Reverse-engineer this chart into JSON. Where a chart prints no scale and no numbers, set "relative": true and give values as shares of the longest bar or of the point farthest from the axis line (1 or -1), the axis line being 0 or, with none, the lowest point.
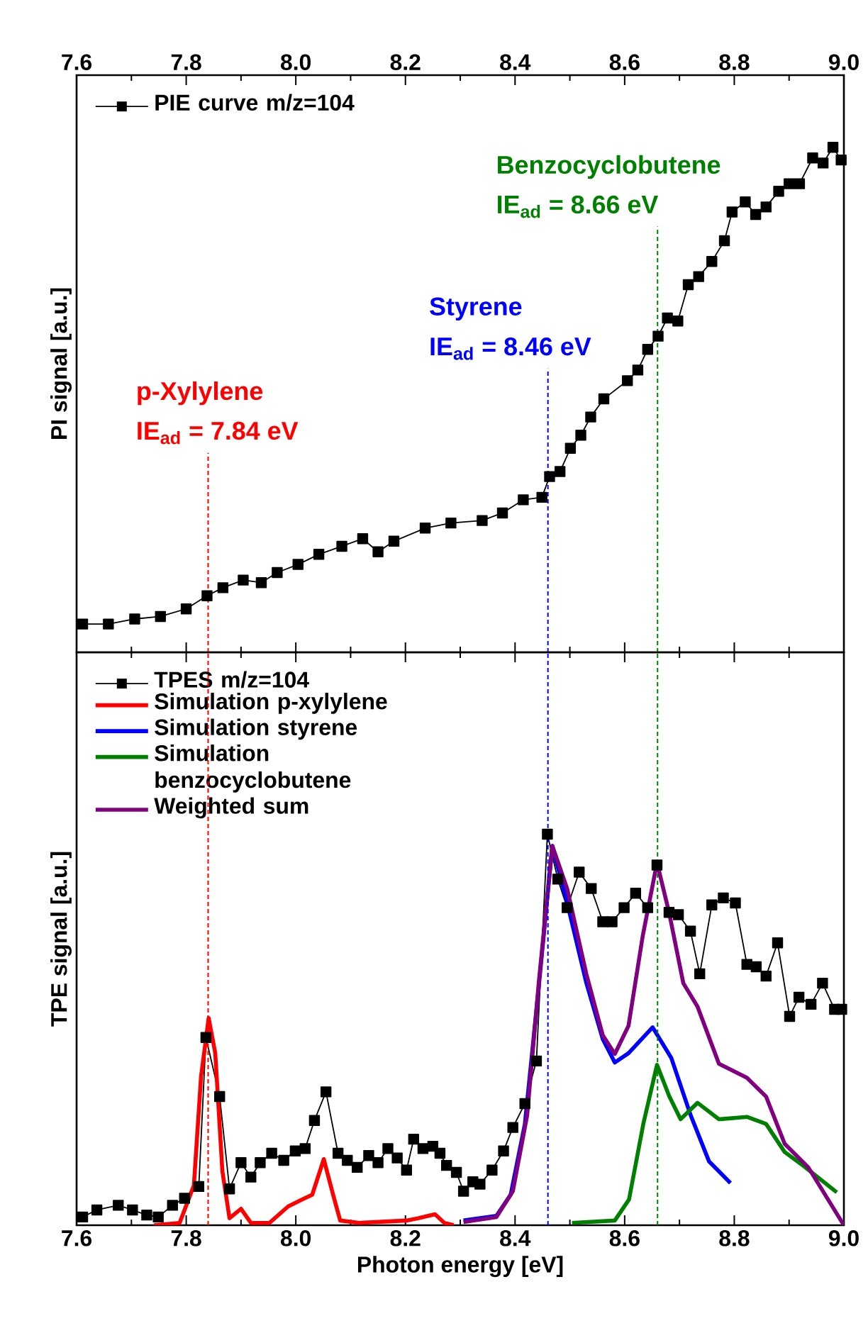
{
  "chart_data": [
    {
      "type": "line",
      "relative": true,
      "ylabel": "PI signal [a.u.]",
      "legend": "top left",
      "tick_labels": "x",
      "xlim": [
        7.6,
        9.0
      ],
      "xticks": [
        7.6,
        {
          "value": 7.7,
          "label": null
        },
        7.8,
        {
          "value": 7.9,
          "label": null
        },
        {
          "value": 8.0,
          "label": "8.0"
        },
        {
          "value": 8.1,
          "label": null
        },
        8.2,
        {
          "value": 8.3,
          "label": null
        },
        8.4,
        {
          "value": 8.5,
          "label": null
        },
        8.6,
        {
          "value": 8.7,
          "label": null
        },
        8.8,
        {
          "value": 8.9,
          "label": null
        },
        {
          "value": 9.0,
          "label": "9.0"
        }
      ],
      "series": [
        {
          "name": "PIE curve m/z=104",
          "color": "#000000",
          "marker": "square",
          "x": [
            7.611,
            7.658,
            7.706,
            7.753,
            7.8,
            7.838,
            7.867,
            7.904,
            7.937,
            7.966,
            8.004,
            8.042,
            8.084,
            8.122,
            8.15,
            8.179,
            8.236,
            8.283,
            8.34,
            8.377,
            8.415,
            8.449,
            8.463,
            8.482,
            8.501,
            8.52,
            8.538,
            8.562,
            8.605,
            8.624,
            8.642,
            8.661,
            8.678,
            8.697,
            8.716,
            8.735,
            8.759,
            8.782,
            8.796,
            8.82,
            8.839,
            8.858,
            8.881,
            8.9,
            8.919,
            8.943,
            8.962,
            8.98,
            8.995
          ],
          "values": [
            0.056,
            0.056,
            0.066,
            0.071,
            0.086,
            0.112,
            0.128,
            0.143,
            0.138,
            0.158,
            0.174,
            0.194,
            0.21,
            0.225,
            0.199,
            0.22,
            0.246,
            0.256,
            0.261,
            0.276,
            0.302,
            0.307,
            0.348,
            0.358,
            0.404,
            0.43,
            0.466,
            0.502,
            0.538,
            0.559,
            0.6,
            0.626,
            0.662,
            0.656,
            0.728,
            0.744,
            0.774,
            0.815,
            0.872,
            0.892,
            0.867,
            0.882,
            0.913,
            0.928,
            0.928,
            0.979,
            0.969,
            1,
            0.975
          ]
        }
      ],
      "ref_lines": [
        {
          "axis": "x",
          "value": 7.84,
          "label": "p-Xylylene",
          "color": "#ff0000",
          "line_style": "dashed"
        },
        {
          "axis": "x",
          "value": 8.46,
          "label": "Styrene",
          "color": "#0000ff",
          "line_style": "dashed"
        },
        {
          "axis": "x",
          "value": 8.66,
          "label": "Benzocyclobutene",
          "color": "#008000",
          "line_style": "dashed"
        }
      ],
      "annotations": [
        "IE$_{ad}$ = 7.84 eV",
        "IE$_{ad}$ = 8.46 eV",
        "IE$_{ad}$ = 8.66 eV"
      ]
    },
    {
      "type": "line",
      "relative": true,
      "xlabel": "Photon energy [eV]",
      "ylabel": "TPE signal [a.u.]",
      "legend": "top left",
      "xlim": [
        7.6,
        9.0
      ],
      "xticks": [
        7.6,
        {
          "value": 7.7,
          "label": null
        },
        7.8,
        {
          "value": 7.9,
          "label": null
        },
        {
          "value": 8.0,
          "label": "8.0"
        },
        {
          "value": 8.1,
          "label": null
        },
        8.2,
        {
          "value": 8.3,
          "label": null
        },
        8.4,
        {
          "value": 8.5,
          "label": null
        },
        8.6,
        {
          "value": 8.7,
          "label": null
        },
        8.8,
        {
          "value": 8.9,
          "label": null
        },
        {
          "value": 9.0,
          "label": "9.0"
        }
      ],
      "series": [
        {
          "name": "TPES m/z=104",
          "color": "#000000",
          "marker": "square",
          "x": [
            7.611,
            7.637,
            7.676,
            7.702,
            7.728,
            7.749,
            7.775,
            7.797,
            7.823,
            7.836,
            7.861,
            7.879,
            7.9,
            7.918,
            7.935,
            7.956,
            7.978,
            7.999,
            8.017,
            8.034,
            8.055,
            8.077,
            8.094,
            8.112,
            8.133,
            8.15,
            8.168,
            8.185,
            8.202,
            8.215,
            8.232,
            8.25,
            8.263,
            8.275,
            8.293,
            8.306,
            8.323,
            8.336,
            8.358,
            8.379,
            8.396,
            8.418,
            8.439,
            8.459,
            8.478,
            8.495,
            8.517,
            8.539,
            8.56,
            8.577,
            8.599,
            8.62,
            8.642,
            8.659,
            8.681,
            8.698,
            8.72,
            8.737,
            8.759,
            8.78,
            8.802,
            8.823,
            8.84,
            8.858,
            8.879,
            8.901,
            8.918,
            8.94,
            8.961,
            8.983,
            8.996
          ],
          "values": [
            0.021,
            0.039,
            0.051,
            0.039,
            0.026,
            0.021,
            0.051,
            0.069,
            0.099,
            0.48,
            0.329,
            0.093,
            0.16,
            0.123,
            0.16,
            0.184,
            0.166,
            0.19,
            0.196,
            0.268,
            0.341,
            0.184,
            0.166,
            0.148,
            0.178,
            0.16,
            0.196,
            0.172,
            0.141,
            0.22,
            0.196,
            0.202,
            0.184,
            0.153,
            0.135,
            0.087,
            0.111,
            0.105,
            0.141,
            0.19,
            0.25,
            0.311,
            0.42,
            1,
            0.885,
            0.812,
            0.903,
            0.861,
            0.776,
            0.776,
            0.812,
            0.849,
            0.812,
            0.921,
            0.8,
            0.794,
            0.752,
            0.643,
            0.819,
            0.837,
            0.824,
            0.667,
            0.661,
            0.637,
            0.722,
            0.534,
            0.583,
            0.565,
            0.619,
            0.552,
            0.552
          ]
        },
        {
          "name": "Simulation p-xylylene",
          "color": "#ff0000",
          "marker": "none",
          "x": [
            7.741,
            7.788,
            7.814,
            7.827,
            7.841,
            7.853,
            7.866,
            7.879,
            7.9,
            7.918,
            7.952,
            7.986,
            8.012,
            8.03,
            8.051,
            8.068,
            8.081,
            8.116,
            8.202,
            8.224,
            8.254,
            8.271,
            8.288
          ],
          "values": [
            0,
            0.006,
            0.102,
            0.379,
            0.53,
            0.44,
            0.138,
            0.018,
            0.042,
            0.006,
            0.006,
            0.048,
            0.066,
            0.078,
            0.169,
            0.078,
            0.012,
            0.006,
            0.012,
            0.018,
            0.028,
            0.006,
            0
          ]
        },
        {
          "name": "Simulation styrene",
          "color": "#0000ff",
          "marker": "none",
          "x": [
            8.306,
            8.366,
            8.392,
            8.418,
            8.444,
            8.468,
            8.495,
            8.53,
            8.56,
            8.582,
            8.607,
            8.651,
            8.685,
            8.72,
            8.754,
            8.793
          ],
          "values": [
            0.012,
            0.024,
            0.078,
            0.259,
            0.62,
            0.97,
            0.825,
            0.62,
            0.476,
            0.416,
            0.44,
            0.506,
            0.428,
            0.283,
            0.163,
            0.108
          ]
        },
        {
          "name": "Simulation benzocyclobutene",
          "color": "#008000",
          "marker": "none",
          "x": [
            8.504,
            8.582,
            8.608,
            8.634,
            8.659,
            8.681,
            8.702,
            8.733,
            8.772,
            8.823,
            8.858,
            8.892,
            8.927,
            8.987
          ],
          "values": [
            0.006,
            0.012,
            0.066,
            0.259,
            0.41,
            0.331,
            0.271,
            0.313,
            0.271,
            0.277,
            0.259,
            0.187,
            0.151,
            0.084
          ]
        },
        {
          "name": "Weighted sum",
          "color": "#800080",
          "marker": "none",
          "x": [
            8.306,
            8.366,
            8.396,
            8.422,
            8.444,
            8.468,
            8.495,
            8.53,
            8.56,
            8.582,
            8.607,
            8.633,
            8.659,
            8.681,
            8.707,
            8.733,
            8.772,
            8.823,
            8.858,
            8.892,
            8.935,
            9.0
          ],
          "values": [
            0.008,
            0.021,
            0.087,
            0.28,
            0.631,
            0.97,
            0.861,
            0.643,
            0.486,
            0.438,
            0.51,
            0.74,
            0.927,
            0.8,
            0.619,
            0.559,
            0.413,
            0.377,
            0.329,
            0.208,
            0.148,
            0
          ]
        }
      ],
      "ref_lines": [
        {
          "axis": "x",
          "value": 7.84,
          "color": "#ff0000",
          "line_style": "dashed"
        },
        {
          "axis": "x",
          "value": 8.46,
          "color": "#0000ff",
          "line_style": "dashed"
        },
        {
          "axis": "x",
          "value": 8.66,
          "color": "#008000",
          "line_style": "dashed"
        }
      ]
    }
  ]
}
